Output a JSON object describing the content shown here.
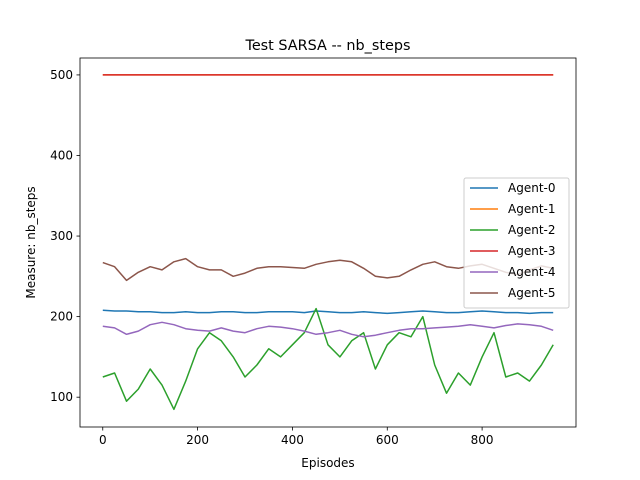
{
  "chart_data": {
    "type": "line",
    "title": "Test  SARSA -- nb_steps",
    "xlabel": "Episodes",
    "ylabel": "Measure: nb_steps",
    "xlim": [
      -48,
      998
    ],
    "ylim": [
      63,
      521
    ],
    "xticks": [
      0,
      200,
      400,
      600,
      800
    ],
    "yticks": [
      100,
      200,
      300,
      400,
      500
    ],
    "grid": false,
    "legend_position": "center-right",
    "x": [
      0,
      25,
      50,
      75,
      100,
      125,
      150,
      175,
      200,
      225,
      250,
      275,
      300,
      325,
      350,
      375,
      400,
      425,
      450,
      475,
      500,
      525,
      550,
      575,
      600,
      625,
      650,
      675,
      700,
      725,
      750,
      775,
      800,
      825,
      850,
      875,
      900,
      925,
      950
    ],
    "series": [
      {
        "name": "Agent-0",
        "color": "#1f77b4",
        "values": [
          208,
          207,
          207,
          206,
          206,
          205,
          205,
          206,
          205,
          205,
          206,
          206,
          205,
          205,
          206,
          206,
          206,
          205,
          207,
          206,
          205,
          205,
          206,
          205,
          204,
          205,
          206,
          207,
          206,
          205,
          205,
          206,
          207,
          206,
          205,
          205,
          204,
          205,
          205
        ]
      },
      {
        "name": "Agent-1",
        "color": "#ff7f0e",
        "values": [
          500,
          500,
          500,
          500,
          500,
          500,
          500,
          500,
          500,
          500,
          500,
          500,
          500,
          500,
          500,
          500,
          500,
          500,
          500,
          500,
          500,
          500,
          500,
          500,
          500,
          500,
          500,
          500,
          500,
          500,
          500,
          500,
          500,
          500,
          500,
          500,
          500,
          500,
          500
        ]
      },
      {
        "name": "Agent-2",
        "color": "#2ca02c",
        "values": [
          125,
          130,
          95,
          110,
          135,
          115,
          85,
          120,
          160,
          180,
          170,
          150,
          125,
          140,
          160,
          150,
          165,
          180,
          210,
          165,
          150,
          170,
          180,
          135,
          165,
          180,
          175,
          200,
          140,
          105,
          130,
          115,
          150,
          180,
          125,
          130,
          120,
          140,
          165
        ]
      },
      {
        "name": "Agent-3",
        "color": "#d62728",
        "values": [
          500,
          500,
          500,
          500,
          500,
          500,
          500,
          500,
          500,
          500,
          500,
          500,
          500,
          500,
          500,
          500,
          500,
          500,
          500,
          500,
          500,
          500,
          500,
          500,
          500,
          500,
          500,
          500,
          500,
          500,
          500,
          500,
          500,
          500,
          500,
          500,
          500,
          500,
          500
        ]
      },
      {
        "name": "Agent-4",
        "color": "#9467bd",
        "values": [
          188,
          186,
          178,
          182,
          190,
          193,
          190,
          185,
          183,
          182,
          186,
          182,
          180,
          185,
          188,
          187,
          185,
          182,
          178,
          180,
          183,
          178,
          175,
          177,
          180,
          183,
          185,
          185,
          186,
          187,
          188,
          190,
          188,
          186,
          189,
          191,
          190,
          188,
          183
        ]
      },
      {
        "name": "Agent-5",
        "color": "#8c564b",
        "values": [
          267,
          262,
          245,
          255,
          262,
          258,
          268,
          272,
          262,
          258,
          258,
          250,
          254,
          260,
          262,
          262,
          261,
          260,
          265,
          268,
          270,
          268,
          260,
          250,
          248,
          250,
          258,
          265,
          268,
          262,
          260,
          263,
          265,
          260,
          255,
          252,
          258,
          263,
          260
        ]
      }
    ]
  }
}
